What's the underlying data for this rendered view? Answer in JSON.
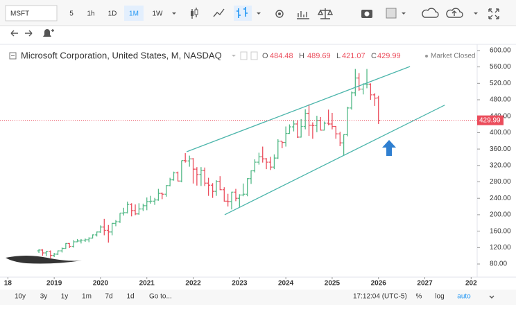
{
  "toolbar": {
    "symbol": "MSFT",
    "intervals": [
      "5",
      "1h",
      "1D",
      "1M",
      "1W"
    ]
  },
  "legend": {
    "title": "Microsoft Corporation, United States, M, NASDAQ",
    "labels": [
      "O",
      "H",
      "L",
      "C"
    ],
    "status": "Market Closed"
  },
  "bottom_bar": {
    "ranges": [
      "10y",
      "3y",
      "1y",
      "1m",
      "7d",
      "1d"
    ],
    "goto": "Go to...",
    "time": "17:12:04 (UTC-5)",
    "options": [
      "%",
      "log",
      "auto"
    ]
  },
  "chart_data": {
    "type": "ohlc",
    "up_color": "#53b987",
    "down_color": "#eb4d5c",
    "line_color": "#4db6ac",
    "grid": false,
    "x": [
      2018.67,
      2018.75,
      2018.83,
      2018.92,
      2019.0,
      2019.08,
      2019.17,
      2019.25,
      2019.33,
      2019.42,
      2019.5,
      2019.58,
      2019.67,
      2019.75,
      2019.83,
      2019.92,
      2020.0,
      2020.08,
      2020.17,
      2020.25,
      2020.33,
      2020.42,
      2020.5,
      2020.58,
      2020.67,
      2020.75,
      2020.83,
      2020.92,
      2021.0,
      2021.08,
      2021.17,
      2021.25,
      2021.33,
      2021.42,
      2021.5,
      2021.58,
      2021.67,
      2021.75,
      2021.83,
      2021.92,
      2022.0,
      2022.08,
      2022.17,
      2022.25,
      2022.33,
      2022.42,
      2022.5,
      2022.58,
      2022.67,
      2022.75,
      2022.83,
      2022.92,
      2023.0,
      2023.08,
      2023.17,
      2023.25,
      2023.33,
      2023.42,
      2023.5,
      2023.58,
      2023.67,
      2023.75,
      2023.83,
      2023.92,
      2024.0,
      2024.08,
      2024.17,
      2024.25,
      2024.33,
      2024.42,
      2024.5,
      2024.58,
      2024.67,
      2024.75,
      2024.83,
      2024.92,
      2025.0,
      2025.08,
      2025.17,
      2025.25,
      2025.33,
      2025.42,
      2025.5,
      2025.58,
      2025.67,
      2025.75,
      2025.83,
      2025.92,
      2026.0
    ],
    "open": [
      112,
      114,
      107,
      110,
      101,
      104,
      112,
      118,
      130,
      123,
      134,
      136,
      138,
      139,
      143,
      151,
      158,
      170,
      162,
      158,
      179,
      183,
      204,
      205,
      225,
      210,
      202,
      214,
      222,
      232,
      233,
      236,
      252,
      250,
      271,
      285,
      302,
      282,
      332,
      331,
      336,
      311,
      298,
      308,
      277,
      272,
      257,
      281,
      261,
      233,
      232,
      255,
      240,
      248,
      250,
      288,
      307,
      328,
      341,
      336,
      328,
      316,
      338,
      379,
      376,
      398,
      414,
      421,
      389,
      415,
      447,
      418,
      417,
      430,
      406,
      423,
      421,
      415,
      397,
      375,
      395,
      460,
      497,
      533,
      506,
      518,
      518,
      492,
      484.48
    ],
    "high": [
      116,
      116,
      112,
      113,
      107,
      113,
      120,
      131,
      131,
      138,
      141,
      141,
      142,
      145,
      152,
      159,
      174,
      190,
      175,
      180,
      187,
      204,
      217,
      232,
      228,
      225,
      228,
      227,
      242,
      246,
      241,
      263,
      254,
      272,
      290,
      305,
      305,
      332,
      350,
      344,
      338,
      316,
      316,
      315,
      290,
      277,
      284,
      294,
      267,
      251,
      256,
      263,
      250,
      276,
      289,
      308,
      335,
      351,
      366,
      338,
      341,
      347,
      384,
      379,
      415,
      420,
      430,
      430,
      433,
      457,
      469,
      425,
      441,
      438,
      427,
      456,
      448,
      416,
      402,
      396,
      463,
      500,
      555,
      545,
      520,
      555,
      520,
      496,
      489.69
    ],
    "low": [
      107,
      100,
      99,
      93,
      97,
      102,
      108,
      117,
      119,
      120,
      133,
      130,
      134,
      133,
      142,
      147,
      156,
      150,
      132,
      150,
      172,
      180,
      198,
      203,
      196,
      199,
      200,
      209,
      211,
      227,
      224,
      234,
      238,
      244,
      269,
      283,
      281,
      279,
      327,
      317,
      276,
      271,
      270,
      270,
      246,
      241,
      246,
      260,
      232,
      220,
      213,
      233,
      219,
      245,
      245,
      275,
      303,
      322,
      327,
      311,
      309,
      311,
      336,
      362,
      366,
      397,
      403,
      387,
      388,
      408,
      392,
      385,
      401,
      405,
      405,
      418,
      408,
      385,
      367,
      344,
      391,
      456,
      489,
      502,
      493,
      508,
      480,
      465,
      421.07
    ],
    "close": [
      114,
      107,
      110,
      101,
      104,
      112,
      118,
      130,
      123,
      134,
      136,
      138,
      139,
      143,
      151,
      158,
      170,
      162,
      158,
      179,
      183,
      204,
      205,
      225,
      210,
      202,
      214,
      222,
      232,
      233,
      236,
      252,
      250,
      271,
      285,
      302,
      282,
      332,
      331,
      336,
      311,
      298,
      308,
      277,
      272,
      257,
      281,
      261,
      233,
      232,
      255,
      240,
      248,
      250,
      288,
      307,
      328,
      341,
      336,
      328,
      316,
      338,
      379,
      376,
      398,
      414,
      421,
      389,
      415,
      447,
      418,
      417,
      430,
      406,
      423,
      421,
      415,
      397,
      375,
      395,
      460,
      497,
      533,
      506,
      518,
      518,
      492,
      484,
      429.99
    ],
    "trendlines": [
      {
        "x": [
          2021.86,
          2026.68
        ],
        "y": [
          353.5,
          561
        ]
      },
      {
        "x": [
          2022.68,
          2027.43
        ],
        "y": [
          200,
          467
        ]
      }
    ],
    "xlim": [
      2017.83,
      2028.13
    ],
    "xticks": [
      {
        "value": 2018,
        "label": "18"
      },
      2019,
      2020,
      2021,
      2022,
      2023,
      2024,
      2025,
      2026,
      2027,
      {
        "value": 2028,
        "label": "202"
      }
    ],
    "ylim": [
      48,
      615
    ],
    "yticks": [
      {
        "value": 600,
        "label": "600.00"
      },
      {
        "value": 560,
        "label": "560.00"
      },
      {
        "value": 520,
        "label": "520.00"
      },
      {
        "value": 480,
        "label": "480.00"
      },
      {
        "value": 440,
        "label": "440.00"
      },
      {
        "value": 400,
        "label": "400.00"
      },
      {
        "value": 360,
        "label": "360.00"
      },
      {
        "value": 320,
        "label": "320.00"
      },
      {
        "value": 280,
        "label": "280.00"
      },
      {
        "value": 240,
        "label": "240.00"
      },
      {
        "value": 200,
        "label": "200.00"
      },
      {
        "value": 160,
        "label": "160.00"
      },
      {
        "value": 120,
        "label": "120.00"
      },
      {
        "value": 80,
        "label": "80.00"
      }
    ]
  }
}
